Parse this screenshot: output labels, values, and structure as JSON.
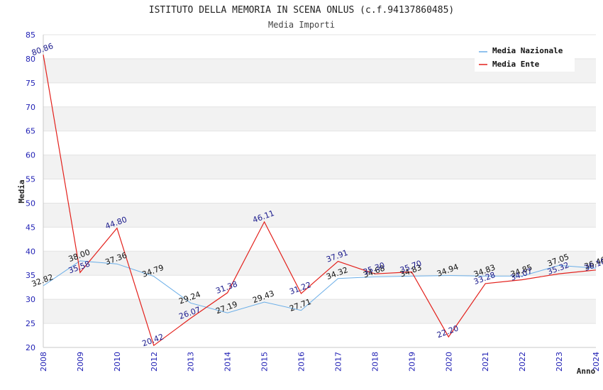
{
  "chart_data": {
    "type": "line",
    "title": "ISTITUTO DELLA MEMORIA IN SCENA ONLUS (c.f.94137860485)",
    "subtitle": "Media Importi",
    "xlabel": "Anno",
    "ylabel": "Media",
    "ylim": [
      20,
      85
    ],
    "yticks": [
      20,
      25,
      30,
      35,
      40,
      45,
      50,
      55,
      60,
      65,
      70,
      75,
      80,
      85
    ],
    "grid": "horizontal bands",
    "legend_position": "top-right",
    "categories": [
      "2008",
      "2009",
      "2010",
      "2012",
      "2013",
      "2014",
      "2015",
      "2016",
      "2017",
      "2018",
      "2019",
      "2020",
      "2021",
      "2022",
      "2023",
      "2024"
    ],
    "series": [
      {
        "name": "Media Nazionale",
        "color": "#6aaee8",
        "label_color": "#111111",
        "values": [
          32.82,
          38.0,
          37.36,
          34.79,
          29.24,
          27.19,
          29.43,
          27.71,
          34.32,
          34.68,
          34.83,
          34.94,
          34.83,
          34.85,
          37.05,
          36.46
        ],
        "labels": [
          "32.82",
          "38.00",
          "37.36",
          "34.79",
          "29.24",
          "27.19",
          "29.43",
          "27.71",
          "34.32",
          "34.68",
          "34.83",
          "34.94",
          "34.83",
          "34.85",
          "37.05",
          "36.46"
        ]
      },
      {
        "name": "Media Ente",
        "color": "#e3201b",
        "label_color": "#1a1a8c",
        "values": [
          80.86,
          35.58,
          44.8,
          20.42,
          26.07,
          31.38,
          46.11,
          31.22,
          37.91,
          35.3,
          35.7,
          22.2,
          33.28,
          34.07,
          35.32,
          36.1
        ],
        "labels": [
          "80.86",
          "35.58",
          "44.80",
          "20.42",
          "26.07",
          "31.38",
          "46.11",
          "31.22",
          "37.91",
          "35.30",
          "35.70",
          "22.20",
          "33.28",
          "34.07",
          "35.32",
          "36.10"
        ]
      }
    ]
  }
}
